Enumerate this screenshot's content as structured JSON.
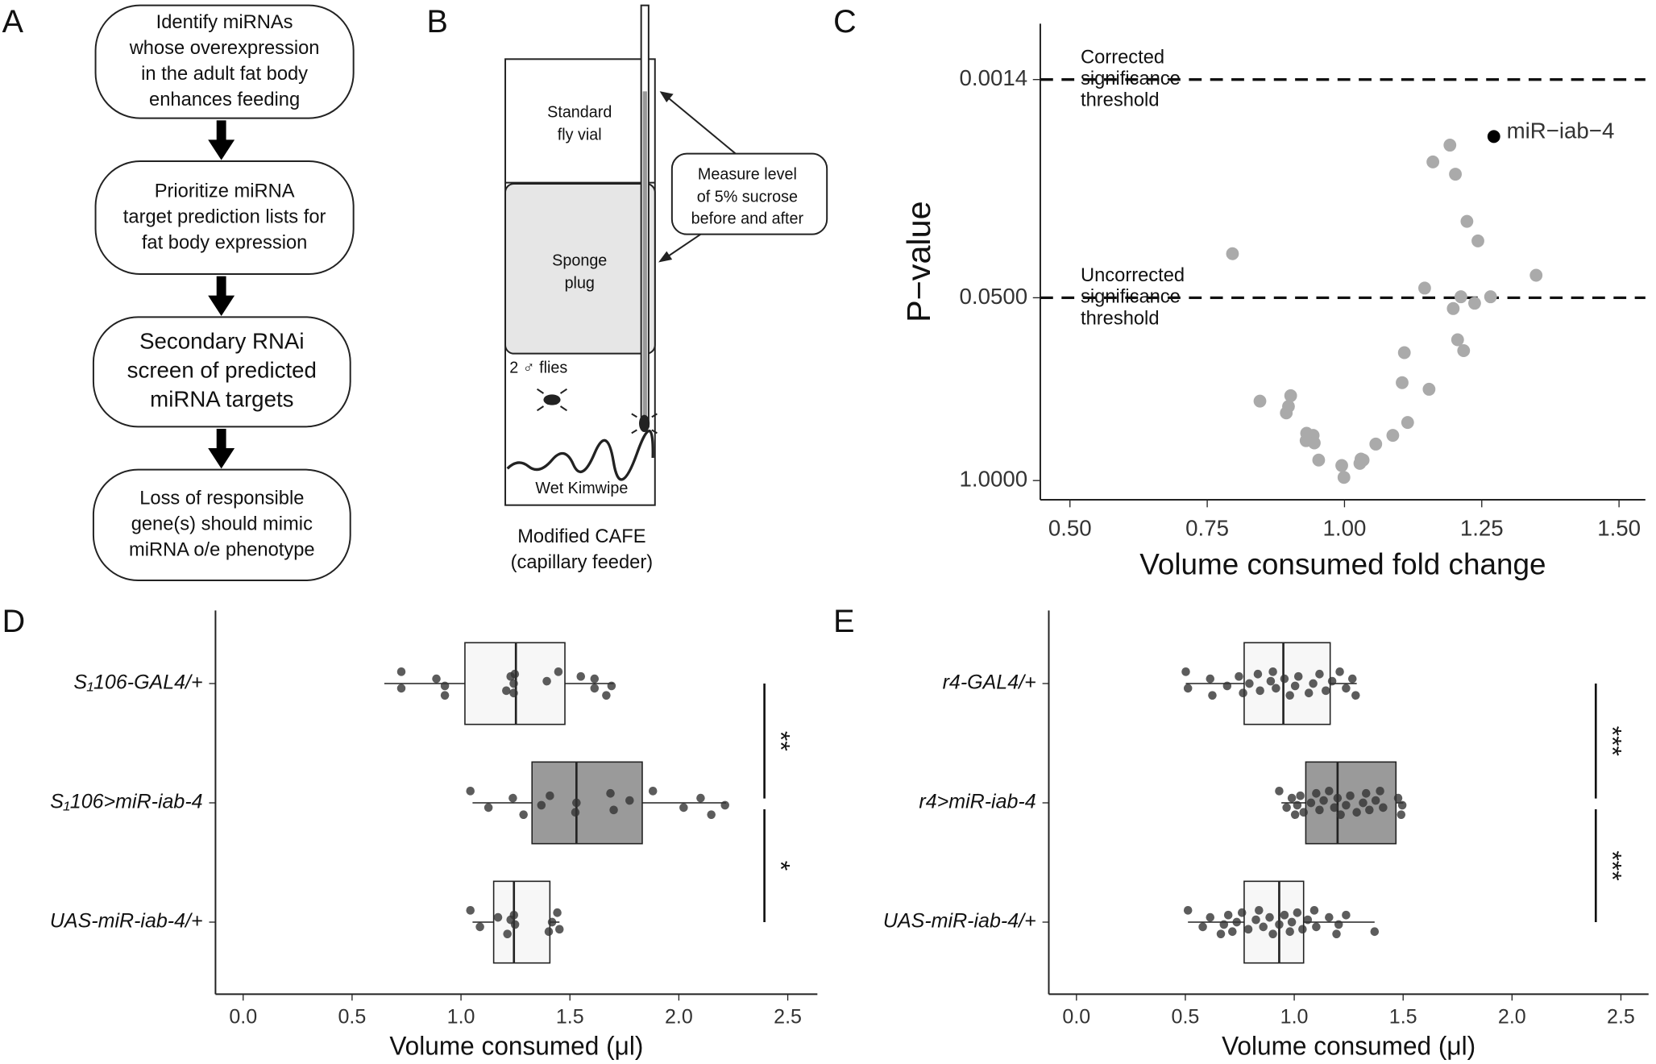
{
  "flowchart": {
    "panel_label": "A",
    "steps": [
      [
        "Identify miRNAs",
        "whose overexpression",
        "in the adult fat body",
        "enhances feeding"
      ],
      [
        "Prioritize miRNA",
        "target prediction lists for",
        "fat body expression"
      ],
      [
        "Secondary RNAi",
        "screen of predicted",
        "miRNA targets"
      ],
      [
        "Loss of responsible",
        "gene(s) should mimic",
        "miRNA o/e phenotype"
      ]
    ]
  },
  "cafe_diagram": {
    "panel_label": "B",
    "vial_label": [
      "Standard",
      "fly vial"
    ],
    "plug_label": [
      "Sponge",
      "plug"
    ],
    "flies_label": "2 ♂ flies",
    "kimwipe_label": "Wet Kimwipe",
    "callout": [
      "Measure level",
      "of 5% sucrose",
      "before and after"
    ],
    "caption": [
      "Modified CAFE",
      "(capillary feeder)"
    ]
  },
  "chart_data": [
    {
      "type": "scatter",
      "panel_label": "C",
      "xlabel": "Volume consumed fold change",
      "ylabel": "P−value",
      "yscale": "log",
      "xlim": [
        0.446,
        1.548
      ],
      "ylim": [
        1.37,
        0.00056
      ],
      "xticks": [
        {
          "value": 0.5,
          "label": "0.50"
        },
        0.75,
        {
          "value": 1,
          "label": "1.00"
        },
        1.25,
        {
          "value": 1.5,
          "label": "1.50"
        }
      ],
      "yticks": [
        0.0014,
        {
          "value": 0.05,
          "label": "0.0500"
        },
        {
          "value": 1,
          "label": "1.0000"
        }
      ],
      "thresholds": [
        {
          "value": 0.0014,
          "label": [
            "Corrected",
            "significance",
            "threshold"
          ]
        },
        {
          "value": 0.05,
          "label": [
            "Uncorrected",
            "significance",
            "threshold"
          ]
        }
      ],
      "series": [
        {
          "color": "#aaaaaa",
          "x": [
            1.192,
            1.161,
            1.202,
            1.223,
            0.796,
            1.243,
            1.349,
            1.146,
            1.212,
            1.266,
            1.237,
            1.198,
            1.206,
            1.217,
            1.109,
            1.105,
            1.154,
            0.846,
            0.902,
            0.898,
            0.894,
            1.115,
            1.088,
            0.931,
            0.943,
            0.945,
            0.93,
            1.057,
            1.03,
            1.034,
            0.953,
            1.028,
            0.995,
            0.999
          ],
          "values": [
            0.0041,
            0.0054,
            0.0066,
            0.0143,
            0.0243,
            0.0197,
            0.0346,
            0.0427,
            0.0492,
            0.0492,
            0.0547,
            0.0597,
            0.0995,
            0.119,
            0.123,
            0.201,
            0.224,
            0.272,
            0.249,
            0.297,
            0.33,
            0.386,
            0.477,
            0.461,
            0.477,
            0.54,
            0.52,
            0.55,
            0.703,
            0.715,
            0.715,
            0.755,
            0.782,
            0.949
          ]
        },
        {
          "name": "miR−iab−4",
          "color": "#000000",
          "x": [
            1.272
          ],
          "values": [
            0.00356
          ]
        }
      ]
    },
    {
      "type": "boxplot",
      "panel_label": "D",
      "xlabel": "Volume consumed (μl)",
      "xlim": [
        -0.127,
        2.636
      ],
      "xticks": [
        {
          "value": 0,
          "label": "0.0"
        },
        0.5,
        {
          "value": 1,
          "label": "1.0"
        },
        1.5,
        {
          "value": 2,
          "label": "2.0"
        },
        2.5
      ],
      "categories": [
        "S₁106-GAL4/+",
        "S₁106>miR-iab-4",
        "UAS-miR-iab-4/+"
      ],
      "colors": [
        "#f7f7f7",
        "#9a9a9a",
        "#f7f7f7"
      ],
      "boxes": [
        {
          "whisker_low": 0.648,
          "q1": 1.018,
          "median": 1.252,
          "q3": 1.477,
          "whisker_high": 1.701,
          "points": [
            0.726,
            0.726,
            0.887,
            0.926,
            0.926,
            1.228,
            1.242,
            1.242,
            1.247,
            1.208,
            1.394,
            1.447,
            1.613,
            1.613,
            1.667,
            1.691,
            1.55
          ]
        },
        {
          "whisker_low": 1.053,
          "q1": 1.326,
          "median": 1.53,
          "q3": 1.832,
          "whisker_high": 2.217,
          "points": [
            1.043,
            1.126,
            1.238,
            1.287,
            1.369,
            1.408,
            1.525,
            1.53,
            1.686,
            1.701,
            1.774,
            1.881,
            2.022,
            2.1,
            2.149,
            2.212
          ]
        },
        {
          "whisker_low": 1.053,
          "q1": 1.15,
          "median": 1.243,
          "q3": 1.408,
          "whisker_high": 1.452,
          "points": [
            1.043,
            1.087,
            1.17,
            1.213,
            1.248,
            1.243,
            1.403,
            1.418,
            1.442,
            1.452,
            1.228
          ]
        }
      ],
      "significance_labels": [
        "**",
        "*"
      ]
    },
    {
      "type": "boxplot",
      "panel_label": "E",
      "xlabel": "Volume consumed (μl)",
      "xlim": [
        -0.127,
        2.627
      ],
      "xticks": [
        {
          "value": 0,
          "label": "0.0"
        },
        0.5,
        {
          "value": 1,
          "label": "1.0"
        },
        1.5,
        {
          "value": 2,
          "label": "2.0"
        },
        2.5
      ],
      "categories": [
        "r4-GAL4/+",
        "r4>miR-iab-4",
        "UAS-miR-iab-4/+"
      ],
      "colors": [
        "#f7f7f7",
        "#9a9a9a",
        "#f7f7f7"
      ],
      "boxes": [
        {
          "whisker_low": 0.502,
          "q1": 0.77,
          "median": 0.95,
          "q3": 1.165,
          "whisker_high": 1.287,
          "points": [
            0.502,
            0.512,
            0.614,
            0.624,
            0.692,
            0.746,
            0.765,
            0.794,
            0.833,
            0.843,
            0.892,
            0.902,
            0.916,
            0.955,
            0.98,
            1.004,
            1.019,
            1.067,
            1.087,
            1.116,
            1.145,
            1.174,
            1.209,
            1.238,
            1.267,
            1.282
          ]
        },
        {
          "whisker_low": 0.941,
          "q1": 1.053,
          "median": 1.199,
          "q3": 1.467,
          "whisker_high": 1.501,
          "points": [
            0.931,
            0.965,
            0.989,
            1.004,
            1.014,
            1.028,
            1.043,
            1.077,
            1.101,
            1.116,
            1.135,
            1.16,
            1.184,
            1.199,
            1.213,
            1.238,
            1.257,
            1.287,
            1.316,
            1.33,
            1.345,
            1.374,
            1.394,
            1.408,
            1.477,
            1.491,
            1.496
          ]
        },
        {
          "whisker_low": 0.512,
          "q1": 0.77,
          "median": 0.931,
          "q3": 1.043,
          "whisker_high": 1.369,
          "points": [
            0.512,
            0.58,
            0.614,
            0.663,
            0.677,
            0.697,
            0.716,
            0.736,
            0.76,
            0.789,
            0.824,
            0.838,
            0.858,
            0.887,
            0.902,
            0.931,
            0.955,
            0.98,
            0.989,
            1.014,
            1.038,
            1.062,
            1.092,
            1.101,
            1.16,
            1.194,
            1.204,
            1.238,
            1.369
          ]
        }
      ],
      "significance_labels": [
        "***",
        "***"
      ]
    }
  ]
}
